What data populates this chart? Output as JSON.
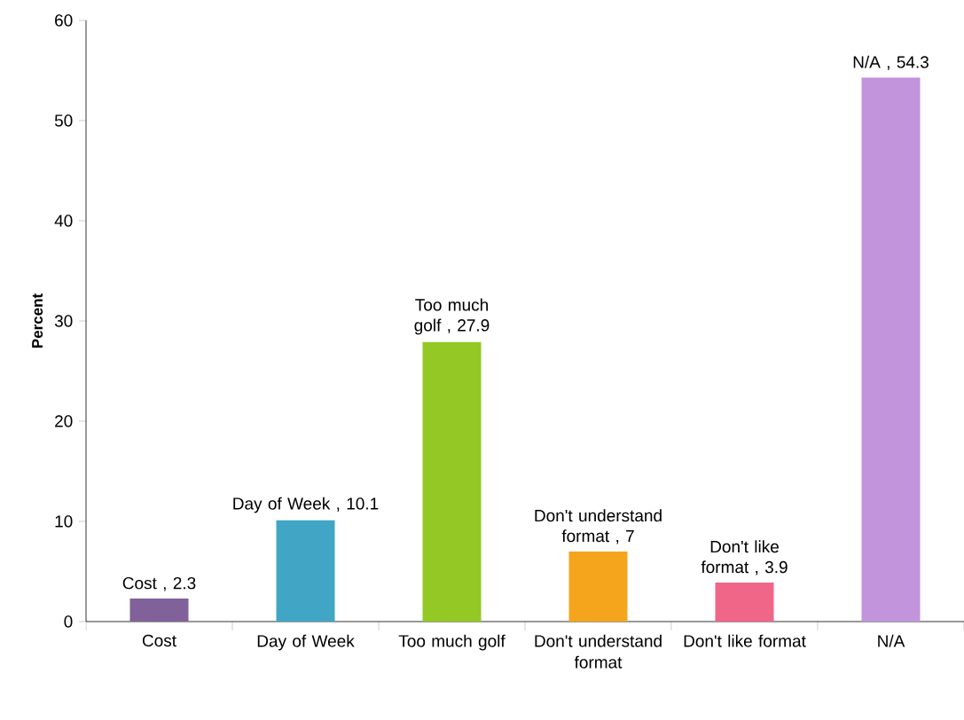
{
  "chart_data": {
    "type": "bar",
    "ylabel": "Percent",
    "categories": [
      "Cost",
      "Day of Week",
      "Too much golf",
      "Don't understand format",
      "Don't like format",
      "N/A"
    ],
    "values": [
      2.3,
      10.1,
      27.9,
      7,
      3.9,
      54.3
    ],
    "colors": [
      "#80619a",
      "#41a6c5",
      "#93c825",
      "#f4a51c",
      "#f06688",
      "#c194dc"
    ],
    "value_labels": [
      "Cost , 2.3",
      "Day of Week , 10.1",
      "Too much golf , 27.9",
      "Don't understand format , 7",
      "Don't like format , 3.9",
      "N/A , 54.3"
    ],
    "ylim": [
      0,
      60
    ],
    "yticks": [
      0,
      10,
      20,
      30,
      40,
      50,
      60
    ]
  }
}
